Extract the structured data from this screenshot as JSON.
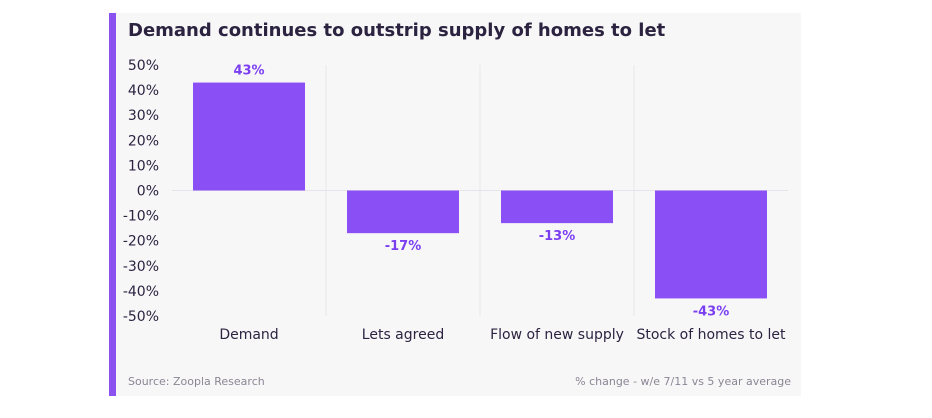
{
  "title": "Demand continues to outstrip supply of homes to let",
  "footer": {
    "source": "Source: Zoopla Research",
    "note": "% change - w/e 7/11 vs 5 year average"
  },
  "colors": {
    "bar": "#8b4ff6",
    "label": "#7b3ff2",
    "accent": "#8b52f0",
    "text": "#2b2340",
    "grid": "#e6e4ea"
  },
  "chart_data": {
    "type": "bar",
    "categories": [
      "Demand",
      "Lets agreed",
      "Flow of new supply",
      "Stock of homes to let"
    ],
    "values": [
      43,
      -17,
      -13,
      -43
    ],
    "data_labels": [
      "43%",
      "-17%",
      "-13%",
      "-43%"
    ],
    "ylim": [
      -50,
      50
    ],
    "yticks": [
      50,
      40,
      30,
      20,
      10,
      0,
      -10,
      -20,
      -30,
      -40,
      -50
    ],
    "ytick_labels": [
      "50%",
      "40%",
      "30%",
      "20%",
      "10%",
      "0%",
      "-10%",
      "-20%",
      "-30%",
      "-40%",
      "-50%"
    ],
    "grid": "vertical separators only"
  }
}
